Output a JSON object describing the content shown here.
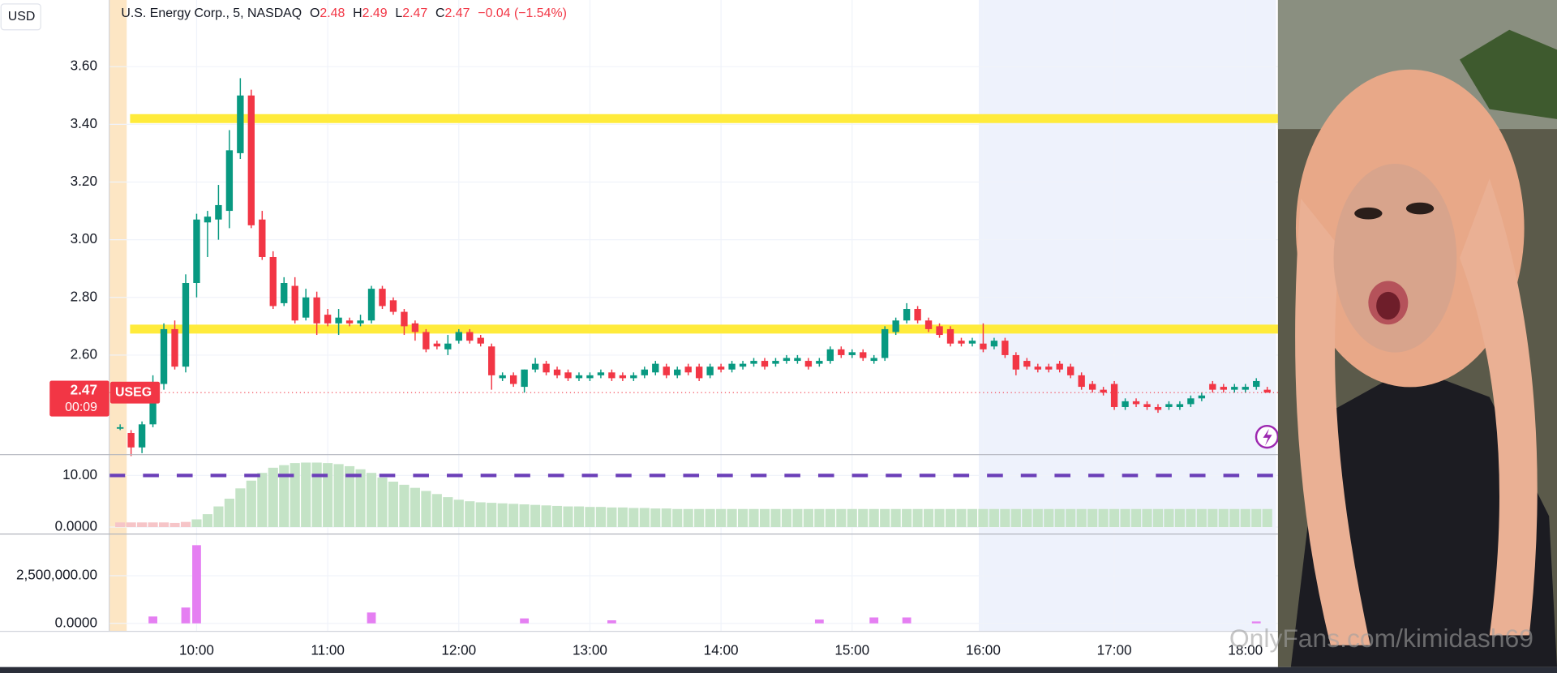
{
  "chart_data": {
    "type": "candlestick",
    "currency": "USD",
    "title": "U.S. Energy Corp., 5, NASDAQ",
    "ohlc_labels": [
      "O",
      "H",
      "L",
      "C"
    ],
    "change": "−0.04 (−1.54%)",
    "symbol": "USEG",
    "countdown": "00:09",
    "up_color": "#089981",
    "down_color": "#f23645",
    "x": [
      565,
      570,
      575,
      580,
      585,
      590,
      595,
      600,
      605,
      610,
      615,
      620,
      625,
      630,
      635,
      640,
      645,
      650,
      655,
      660,
      665,
      670,
      675,
      680,
      685,
      690,
      695,
      700,
      705,
      710,
      715,
      720,
      725,
      730,
      735,
      740,
      745,
      750,
      755,
      760,
      765,
      770,
      775,
      780,
      785,
      790,
      795,
      800,
      805,
      810,
      815,
      820,
      825,
      830,
      835,
      840,
      845,
      850,
      855,
      860,
      865,
      870,
      875,
      880,
      885,
      890,
      895,
      900,
      905,
      910,
      915,
      920,
      925,
      930,
      935,
      940,
      945,
      950,
      955,
      960,
      965,
      970,
      975,
      980,
      985,
      990,
      995,
      1000,
      1005,
      1010,
      1015,
      1020,
      1025,
      1030,
      1035,
      1040,
      1045,
      1050,
      1055,
      1060,
      1065,
      1070,
      1075,
      1080,
      1085,
      1090
    ],
    "open": [
      2.35,
      2.33,
      2.28,
      2.36,
      2.5,
      2.69,
      2.56,
      2.85,
      3.06,
      3.07,
      3.1,
      3.3,
      3.5,
      3.07,
      2.94,
      2.78,
      2.84,
      2.73,
      2.8,
      2.74,
      2.71,
      2.72,
      2.71,
      2.72,
      2.83,
      2.79,
      2.75,
      2.71,
      2.68,
      2.64,
      2.62,
      2.65,
      2.68,
      2.66,
      2.63,
      2.52,
      2.53,
      2.49,
      2.55,
      2.57,
      2.55,
      2.54,
      2.52,
      2.52,
      2.53,
      2.54,
      2.53,
      2.52,
      2.53,
      2.54,
      2.56,
      2.53,
      2.56,
      2.56,
      2.53,
      2.56,
      2.55,
      2.56,
      2.57,
      2.58,
      2.57,
      2.58,
      2.58,
      2.58,
      2.57,
      2.58,
      2.62,
      2.6,
      2.61,
      2.58,
      2.59,
      2.68,
      2.72,
      2.76,
      2.72,
      2.7,
      2.69,
      2.65,
      2.64,
      2.64,
      2.63,
      2.65,
      2.6,
      2.58,
      2.56,
      2.56,
      2.57,
      2.56,
      2.53,
      2.5,
      2.48,
      2.5,
      2.42,
      2.44,
      2.43,
      2.42,
      2.42,
      2.42,
      2.43,
      2.45,
      2.5,
      2.49,
      2.48,
      2.48,
      2.49,
      2.48
    ],
    "high": [
      2.36,
      2.34,
      2.37,
      2.53,
      2.71,
      2.72,
      2.88,
      3.09,
      3.1,
      3.19,
      3.38,
      3.56,
      3.52,
      3.1,
      2.96,
      2.87,
      2.87,
      2.83,
      2.82,
      2.76,
      2.76,
      2.73,
      2.74,
      2.84,
      2.84,
      2.8,
      2.76,
      2.72,
      2.69,
      2.65,
      2.67,
      2.69,
      2.69,
      2.67,
      2.64,
      2.54,
      2.54,
      2.55,
      2.59,
      2.58,
      2.56,
      2.55,
      2.54,
      2.54,
      2.55,
      2.55,
      2.54,
      2.54,
      2.56,
      2.58,
      2.57,
      2.56,
      2.57,
      2.57,
      2.57,
      2.57,
      2.58,
      2.58,
      2.59,
      2.59,
      2.59,
      2.6,
      2.6,
      2.59,
      2.59,
      2.63,
      2.63,
      2.62,
      2.62,
      2.6,
      2.7,
      2.73,
      2.78,
      2.77,
      2.73,
      2.71,
      2.7,
      2.66,
      2.66,
      2.71,
      2.66,
      2.66,
      2.61,
      2.59,
      2.57,
      2.57,
      2.58,
      2.57,
      2.54,
      2.51,
      2.49,
      2.51,
      2.45,
      2.45,
      2.44,
      2.43,
      2.44,
      2.44,
      2.46,
      2.47,
      2.51,
      2.5,
      2.5,
      2.5,
      2.52,
      2.49
    ],
    "low": [
      2.34,
      2.25,
      2.26,
      2.35,
      2.48,
      2.55,
      2.54,
      2.8,
      2.94,
      3.0,
      3.04,
      3.28,
      3.04,
      2.93,
      2.76,
      2.77,
      2.71,
      2.72,
      2.67,
      2.7,
      2.67,
      2.7,
      2.7,
      2.71,
      2.76,
      2.74,
      2.67,
      2.65,
      2.61,
      2.62,
      2.6,
      2.64,
      2.64,
      2.63,
      2.48,
      2.51,
      2.49,
      2.47,
      2.54,
      2.53,
      2.52,
      2.51,
      2.51,
      2.51,
      2.52,
      2.51,
      2.51,
      2.51,
      2.52,
      2.53,
      2.52,
      2.52,
      2.53,
      2.51,
      2.52,
      2.54,
      2.54,
      2.55,
      2.56,
      2.55,
      2.56,
      2.57,
      2.57,
      2.55,
      2.56,
      2.57,
      2.59,
      2.59,
      2.58,
      2.57,
      2.58,
      2.67,
      2.71,
      2.71,
      2.68,
      2.66,
      2.63,
      2.63,
      2.63,
      2.61,
      2.62,
      2.59,
      2.53,
      2.55,
      2.54,
      2.54,
      2.54,
      2.52,
      2.48,
      2.47,
      2.46,
      2.41,
      2.41,
      2.42,
      2.41,
      2.4,
      2.41,
      2.41,
      2.42,
      2.44,
      2.47,
      2.47,
      2.47,
      2.47,
      2.48,
      2.47
    ],
    "close": [
      2.35,
      2.28,
      2.36,
      2.5,
      2.69,
      2.56,
      2.85,
      3.07,
      3.08,
      3.12,
      3.31,
      3.5,
      3.05,
      2.94,
      2.77,
      2.85,
      2.72,
      2.8,
      2.71,
      2.71,
      2.73,
      2.71,
      2.72,
      2.83,
      2.77,
      2.75,
      2.7,
      2.68,
      2.62,
      2.63,
      2.64,
      2.68,
      2.65,
      2.64,
      2.53,
      2.53,
      2.5,
      2.55,
      2.57,
      2.54,
      2.53,
      2.52,
      2.53,
      2.53,
      2.54,
      2.52,
      2.52,
      2.53,
      2.55,
      2.57,
      2.53,
      2.55,
      2.54,
      2.52,
      2.56,
      2.55,
      2.57,
      2.57,
      2.58,
      2.56,
      2.58,
      2.59,
      2.59,
      2.56,
      2.58,
      2.62,
      2.6,
      2.61,
      2.59,
      2.59,
      2.69,
      2.72,
      2.76,
      2.72,
      2.69,
      2.67,
      2.64,
      2.64,
      2.65,
      2.62,
      2.65,
      2.6,
      2.55,
      2.56,
      2.55,
      2.55,
      2.55,
      2.53,
      2.49,
      2.48,
      2.47,
      2.42,
      2.44,
      2.43,
      2.42,
      2.41,
      2.43,
      2.43,
      2.45,
      2.46,
      2.48,
      2.48,
      2.49,
      2.49,
      2.51,
      2.47
    ],
    "xlim": [
      560,
      1094
    ],
    "xticks": [
      {
        "value": 600,
        "label": "10:00"
      },
      {
        "value": 660,
        "label": "11:00"
      },
      {
        "value": 720,
        "label": "12:00"
      },
      {
        "value": 780,
        "label": "13:00"
      },
      {
        "value": 840,
        "label": "14:00"
      },
      {
        "value": 900,
        "label": "15:00"
      },
      {
        "value": 960,
        "label": "16:00"
      },
      {
        "value": 1020,
        "label": "17:00"
      },
      {
        "value": 1080,
        "label": "18:00"
      }
    ],
    "ylim": [
      2.255,
      3.831
    ],
    "yticks": [
      {
        "value": 2.6,
        "label": "2.60"
      },
      {
        "value": 2.8,
        "label": "2.80"
      },
      {
        "value": 3.0,
        "label": "3.00"
      },
      {
        "value": 3.2,
        "label": "3.20"
      },
      {
        "value": 3.4,
        "label": "3.40"
      },
      {
        "value": 3.6,
        "label": "3.60"
      }
    ],
    "grid": true,
    "hlines": [
      3.42,
      2.69
    ],
    "hline_color": "#ffeb3b",
    "sessions": [
      {
        "start": 560,
        "end": 568,
        "color": "#fde6c4"
      },
      {
        "start": 958,
        "end": 1094,
        "color": "#eef2fc"
      }
    ],
    "indicator": {
      "type": "histogram",
      "values": [
        0.9,
        0.9,
        0.9,
        0.9,
        0.9,
        0.8,
        1.0,
        1.5,
        2.5,
        4,
        5.5,
        7.5,
        9,
        10.5,
        11.5,
        12,
        12.4,
        12.5,
        12.5,
        12.4,
        12.2,
        11.8,
        11.2,
        10.5,
        9.6,
        8.8,
        8.2,
        7.6,
        7,
        6.4,
        5.8,
        5.3,
        5.0,
        4.8,
        4.7,
        4.6,
        4.5,
        4.4,
        4.3,
        4.2,
        4.1,
        4.0,
        4.0,
        3.9,
        3.9,
        3.8,
        3.8,
        3.7,
        3.7,
        3.6,
        3.6,
        3.5,
        3.5,
        3.5,
        3.5,
        3.5,
        3.5,
        3.5,
        3.5,
        3.5,
        3.5,
        3.5,
        3.5,
        3.5,
        3.5,
        3.5,
        3.5,
        3.5,
        3.5,
        3.5,
        3.5,
        3.5,
        3.5,
        3.5,
        3.5,
        3.5,
        3.5,
        3.5,
        3.5,
        3.5,
        3.5,
        3.5,
        3.5,
        3.5,
        3.5,
        3.5,
        3.5,
        3.5,
        3.5,
        3.5,
        3.5,
        3.5,
        3.5,
        3.5,
        3.5,
        3.5,
        3.5,
        3.5,
        3.5,
        3.5,
        3.5,
        3.5,
        3.5,
        3.5,
        3.5,
        3.5
      ],
      "colors": [
        "#f6c5c8",
        "#f6c5c8",
        "#f6c5c8",
        "#f6c5c8",
        "#f6c5c8",
        "#f6c5c8",
        "#f6c5c8",
        "#c4e3c6",
        "#c4e3c6",
        "#c4e3c6",
        "#c4e3c6",
        "#c4e3c6",
        "#c4e3c6",
        "#c4e3c6",
        "#c4e3c6",
        "#c4e3c6",
        "#c4e3c6",
        "#c4e3c6",
        "#c4e3c6",
        "#c4e3c6",
        "#c4e3c6",
        "#c4e3c6",
        "#c4e3c6",
        "#c4e3c6",
        "#c4e3c6",
        "#c4e3c6",
        "#c4e3c6",
        "#c4e3c6",
        "#c4e3c6",
        "#c4e3c6",
        "#c4e3c6",
        "#c4e3c6",
        "#c4e3c6",
        "#c4e3c6",
        "#c4e3c6",
        "#c4e3c6",
        "#c4e3c6",
        "#c4e3c6",
        "#c4e3c6",
        "#c4e3c6",
        "#c4e3c6",
        "#c4e3c6",
        "#c4e3c6",
        "#c4e3c6",
        "#c4e3c6",
        "#c4e3c6",
        "#c4e3c6",
        "#c4e3c6",
        "#c4e3c6",
        "#c4e3c6",
        "#c4e3c6",
        "#c4e3c6",
        "#c4e3c6",
        "#c4e3c6",
        "#c4e3c6",
        "#c4e3c6",
        "#c4e3c6",
        "#c4e3c6",
        "#c4e3c6",
        "#c4e3c6",
        "#c4e3c6",
        "#c4e3c6",
        "#c4e3c6",
        "#c4e3c6",
        "#c4e3c6",
        "#c4e3c6",
        "#c4e3c6",
        "#c4e3c6",
        "#c4e3c6",
        "#c4e3c6",
        "#c4e3c6",
        "#c4e3c6",
        "#c4e3c6",
        "#c4e3c6",
        "#c4e3c6",
        "#c4e3c6",
        "#c4e3c6",
        "#c4e3c6",
        "#c4e3c6",
        "#c4e3c6",
        "#c4e3c6",
        "#c4e3c6",
        "#c4e3c6",
        "#c4e3c6",
        "#c4e3c6",
        "#c4e3c6",
        "#c4e3c6",
        "#c4e3c6",
        "#c4e3c6",
        "#c4e3c6",
        "#c4e3c6",
        "#c4e3c6",
        "#c4e3c6",
        "#c4e3c6",
        "#c4e3c6",
        "#c4e3c6",
        "#c4e3c6",
        "#c4e3c6",
        "#c4e3c6",
        "#c4e3c6",
        "#c4e3c6",
        "#c4e3c6",
        "#c4e3c6",
        "#c4e3c6",
        "#c4e3c6",
        "#c4e3c6"
      ],
      "ylim": [
        -1.35,
        14.04
      ],
      "yticks": [
        {
          "value": 10,
          "label": "10.00"
        },
        {
          "value": 0,
          "label": "0.0000"
        }
      ],
      "hline": 10,
      "hline_color": "#6b3fb8"
    },
    "volume": {
      "type": "bar",
      "values": [
        0,
        0,
        0,
        360000,
        0,
        0,
        830000,
        4100000,
        0,
        0,
        0,
        0,
        0,
        0,
        0,
        0,
        0,
        0,
        0,
        0,
        0,
        0,
        0,
        570000,
        0,
        0,
        0,
        0,
        0,
        0,
        0,
        0,
        0,
        0,
        0,
        0,
        0,
        260000,
        0,
        0,
        0,
        0,
        0,
        0,
        0,
        160000,
        0,
        0,
        0,
        0,
        0,
        0,
        0,
        0,
        0,
        0,
        0,
        0,
        0,
        0,
        0,
        0,
        0,
        0,
        200000,
        0,
        0,
        0,
        0,
        310000,
        0,
        0,
        310000,
        0,
        0,
        0,
        0,
        0,
        0,
        0,
        0,
        0,
        0,
        0,
        0,
        0,
        0,
        0,
        0,
        0,
        0,
        0,
        0,
        0,
        0,
        0,
        0,
        0,
        0,
        0,
        0,
        0,
        0,
        0,
        100000,
        0
      ],
      "color": "#e57ff2",
      "ylim": [
        -417000,
        4580000
      ],
      "yticks": [
        {
          "value": 2500000,
          "label": "2,500,000.00"
        },
        {
          "value": 0,
          "label": "0.0000"
        }
      ]
    }
  },
  "watermark": "OnlyFans.com/kimidash69"
}
